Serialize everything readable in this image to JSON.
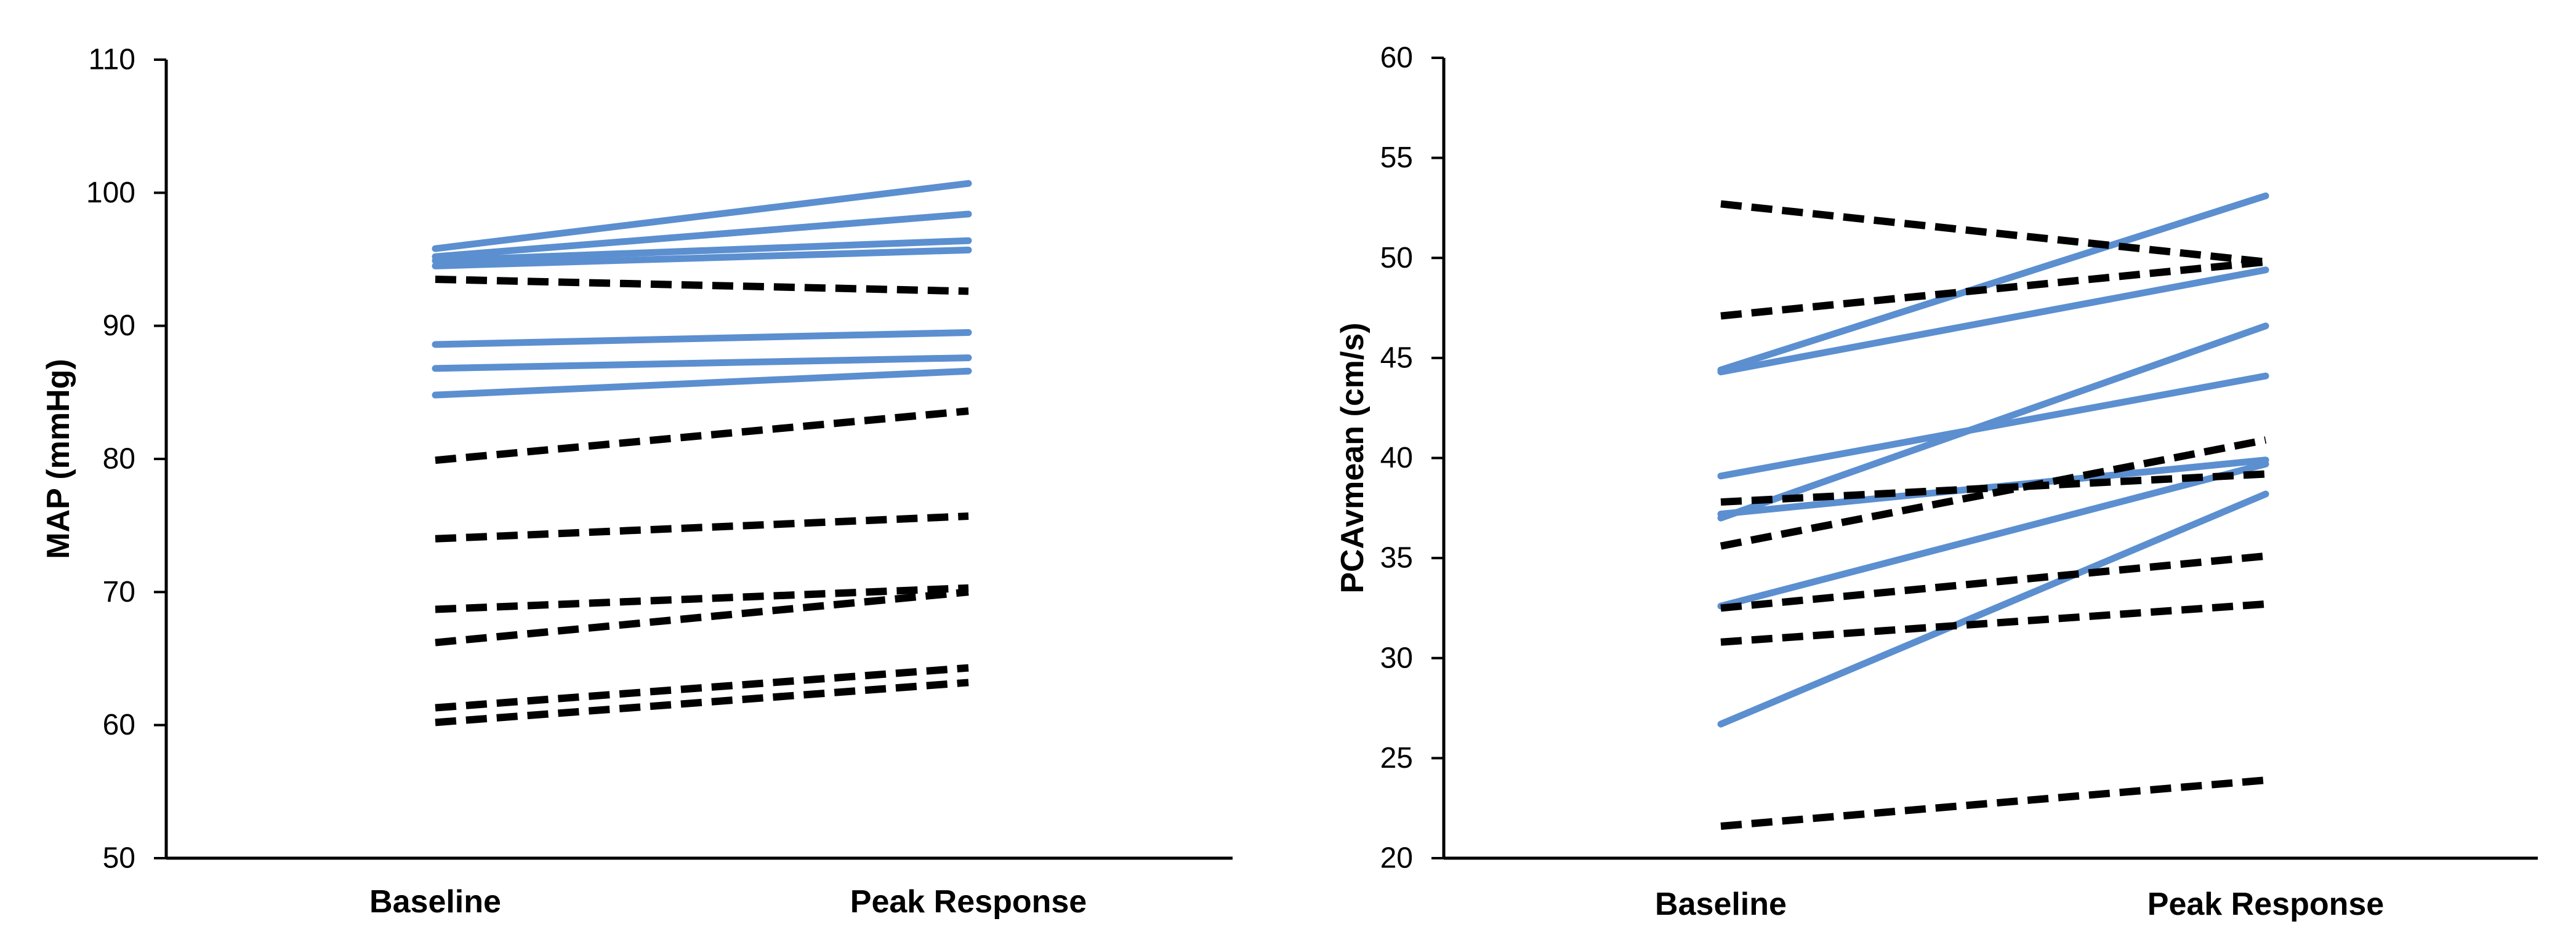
{
  "chart_data": [
    {
      "type": "line",
      "title": "",
      "xlabel": "",
      "ylabel": "MAP (mmHg)",
      "categories": [
        "Baseline",
        "Peak Response"
      ],
      "ylim": [
        50,
        110
      ],
      "yticks": [
        50,
        60,
        70,
        80,
        90,
        100,
        110
      ],
      "ytick_labels": [
        "50",
        "60",
        "70",
        "80",
        "90",
        "100",
        "110"
      ],
      "grid": false,
      "legend": "none",
      "colors": {
        "solid": "#5b8fd0",
        "dashed": "#000000"
      },
      "series": [
        {
          "name": "blue-1",
          "style": "solid",
          "values": [
            95.8,
            100.7
          ]
        },
        {
          "name": "blue-2",
          "style": "solid",
          "values": [
            95.2,
            98.4
          ]
        },
        {
          "name": "blue-3",
          "style": "solid",
          "values": [
            94.9,
            96.4
          ]
        },
        {
          "name": "blue-4",
          "style": "solid",
          "values": [
            94.5,
            95.7
          ]
        },
        {
          "name": "blue-5",
          "style": "solid",
          "values": [
            88.6,
            89.5
          ]
        },
        {
          "name": "blue-6",
          "style": "solid",
          "values": [
            86.8,
            87.6
          ]
        },
        {
          "name": "blue-7",
          "style": "solid",
          "values": [
            84.8,
            86.6
          ]
        },
        {
          "name": "black-1",
          "style": "dashed",
          "values": [
            93.5,
            92.6
          ]
        },
        {
          "name": "black-2",
          "style": "dashed",
          "values": [
            79.9,
            83.6
          ]
        },
        {
          "name": "black-3",
          "style": "dashed",
          "values": [
            74.0,
            75.7
          ]
        },
        {
          "name": "black-4",
          "style": "dashed",
          "values": [
            68.7,
            70.3
          ]
        },
        {
          "name": "black-5",
          "style": "dashed",
          "values": [
            66.2,
            70.0
          ]
        },
        {
          "name": "black-6",
          "style": "dashed",
          "values": [
            61.3,
            64.3
          ]
        },
        {
          "name": "black-7",
          "style": "dashed",
          "values": [
            60.2,
            63.2
          ]
        }
      ]
    },
    {
      "type": "line",
      "title": "",
      "xlabel": "",
      "ylabel": "PCAvmean (cm/s)",
      "categories": [
        "Baseline",
        "Peak Response"
      ],
      "ylim": [
        20,
        60
      ],
      "yticks": [
        20,
        25,
        30,
        35,
        40,
        45,
        50,
        55,
        60
      ],
      "ytick_labels": [
        "20",
        "25",
        "30",
        "35",
        "40",
        "45",
        "50",
        "55",
        "60"
      ],
      "grid": false,
      "legend": "none",
      "colors": {
        "solid": "#5b8fd0",
        "dashed": "#000000"
      },
      "series": [
        {
          "name": "blue-1",
          "style": "solid",
          "values": [
            44.4,
            53.1
          ]
        },
        {
          "name": "blue-2",
          "style": "solid",
          "values": [
            44.3,
            49.4
          ]
        },
        {
          "name": "blue-3",
          "style": "solid",
          "values": [
            39.1,
            44.1
          ]
        },
        {
          "name": "blue-4",
          "style": "solid",
          "values": [
            37.0,
            46.6
          ]
        },
        {
          "name": "blue-5",
          "style": "solid",
          "values": [
            37.2,
            39.9
          ]
        },
        {
          "name": "blue-6",
          "style": "solid",
          "values": [
            32.6,
            39.7
          ]
        },
        {
          "name": "blue-7",
          "style": "solid",
          "values": [
            26.7,
            38.2
          ]
        },
        {
          "name": "black-1",
          "style": "dashed",
          "values": [
            52.7,
            49.8
          ]
        },
        {
          "name": "black-2",
          "style": "dashed",
          "values": [
            47.1,
            49.8
          ]
        },
        {
          "name": "black-3",
          "style": "dashed",
          "values": [
            37.8,
            39.2
          ]
        },
        {
          "name": "black-4",
          "style": "dashed",
          "values": [
            35.6,
            40.9
          ]
        },
        {
          "name": "black-5",
          "style": "dashed",
          "values": [
            32.5,
            35.1
          ]
        },
        {
          "name": "black-6",
          "style": "dashed",
          "values": [
            30.8,
            32.7
          ]
        },
        {
          "name": "black-7",
          "style": "dashed",
          "values": [
            21.6,
            23.9
          ]
        }
      ]
    }
  ]
}
